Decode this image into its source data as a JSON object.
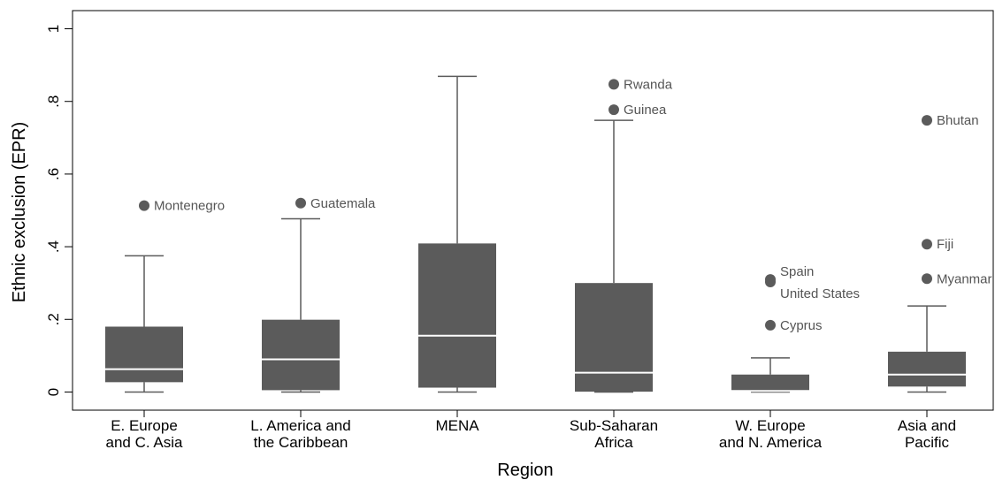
{
  "chart_data": {
    "type": "box",
    "x_label": "Region",
    "y_label": "Ethnic exclusion (EPR)",
    "categories": [
      "E. Europe\nand C. Asia",
      "L. America and\nthe Caribbean",
      "MENA",
      "Sub-Saharan\nAfrica",
      "W. Europe\nand N. America",
      "Asia and\nPacific"
    ],
    "boxes": [
      {
        "min": 0,
        "q1": 0.027,
        "median": 0.063,
        "q3": 0.18,
        "max": 0.375,
        "outliers": [
          {
            "label": "Montenegro",
            "value": 0.513
          }
        ]
      },
      {
        "min": 0,
        "q1": 0.005,
        "median": 0.09,
        "q3": 0.199,
        "max": 0.477,
        "outliers": [
          {
            "label": "Guatemala",
            "value": 0.52
          }
        ]
      },
      {
        "min": 0,
        "q1": 0.012,
        "median": 0.155,
        "q3": 0.409,
        "max": 0.869,
        "outliers": []
      },
      {
        "min": 0,
        "q1": 0.001,
        "median": 0.053,
        "q3": 0.3,
        "max": 0.748,
        "outliers": [
          {
            "label": "Rwanda",
            "value": 0.847
          },
          {
            "label": "Guinea",
            "value": 0.777
          }
        ]
      },
      {
        "min": 0,
        "q1": 0.002,
        "median": 0.003,
        "q3": 0.048,
        "max": 0.094,
        "outliers": [
          {
            "label": "Spain",
            "value": 0.31
          },
          {
            "label": "United States",
            "value": 0.303
          },
          {
            "label": "Cyprus",
            "value": 0.184
          }
        ]
      },
      {
        "min": 0,
        "q1": 0.015,
        "median": 0.048,
        "q3": 0.111,
        "max": 0.237,
        "outliers": [
          {
            "label": "Bhutan",
            "value": 0.748
          },
          {
            "label": "Fiji",
            "value": 0.407
          },
          {
            "label": "Myanmar",
            "value": 0.312
          }
        ]
      }
    ],
    "color": "#5b5b5b",
    "median_color": "#ffffff",
    "ylim": [
      -0.05,
      1.05
    ],
    "yticks": [
      0,
      {
        "value": 0.2,
        "label": ".2"
      },
      {
        "value": 0.4,
        "label": ".4"
      },
      {
        "value": 0.6,
        "label": ".6"
      },
      {
        "value": 0.8,
        "label": ".8"
      },
      1
    ]
  }
}
